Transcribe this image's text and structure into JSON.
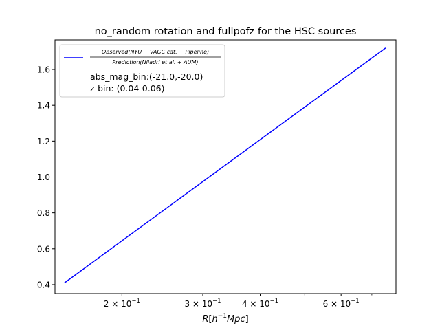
{
  "chart_data": {
    "type": "line",
    "title": "no_random rotation and fullpofz for the HSC sources",
    "xlabel": "R[h⁻¹Mpc]",
    "ylabel": "",
    "xscale": "log",
    "xlim": [
      0.143,
      0.79
    ],
    "ylim": [
      0.35,
      1.765
    ],
    "x_tick_labels": [
      {
        "value": 0.2,
        "base": "2 × 10",
        "exp": "−1"
      },
      {
        "value": 0.3,
        "base": "3 × 10",
        "exp": "−1"
      },
      {
        "value": 0.4,
        "base": "4 × 10",
        "exp": "−1"
      },
      {
        "value": 0.6,
        "base": "6 × 10",
        "exp": "−1"
      }
    ],
    "x_minor_ticks": [
      0.5,
      0.7
    ],
    "y_ticks": [
      0.4,
      0.6,
      0.8,
      1.0,
      1.2,
      1.4,
      1.6
    ],
    "y_tick_labels": [
      "0.4",
      "0.6",
      "0.8",
      "1.0",
      "1.2",
      "1.4",
      "1.6"
    ],
    "series": [
      {
        "name": "Observed(NYU − VAGC cat. + Pipeline) / Prediction(Niladri et al. + AUM)",
        "color": "#0000ff",
        "x": [
          0.15,
          0.75
        ],
        "y": [
          0.41,
          1.72
        ]
      }
    ],
    "legend": {
      "placement": "top-left",
      "numerator": "Observed(NYU − VAGC cat. + Pipeline)",
      "denominator": "Prediction(Niladri et al. + AUM)",
      "extra_lines": [
        "abs_mag_bin:(-21.0,-20.0)",
        "z-bin: (0.04-0.06)"
      ]
    },
    "grid": false
  }
}
